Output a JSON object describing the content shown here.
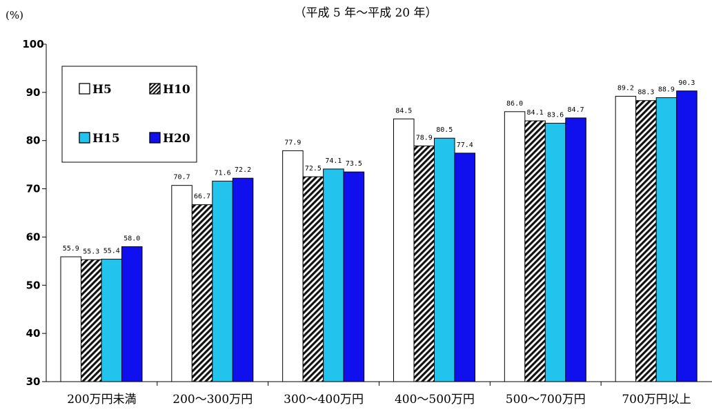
{
  "chart_data": {
    "type": "bar",
    "title": "",
    "subtitle": "（平成 5 年～平成 20 年）",
    "unit_label": "(%)",
    "xlabel": "",
    "ylabel": "",
    "ylim": [
      30,
      100
    ],
    "yticks": [
      30,
      40,
      50,
      60,
      70,
      80,
      90,
      100
    ],
    "grid": false,
    "legend_position": "top-left",
    "categories": [
      "200万円未満",
      "200～300万円",
      "300～400万円",
      "400～500万円",
      "500～700万円",
      "700万円以上"
    ],
    "series": [
      {
        "name": "H5",
        "style": "white",
        "color": "#ffffff",
        "values": [
          55.9,
          70.7,
          77.9,
          84.5,
          86.0,
          89.2
        ],
        "labels": [
          "55.9",
          "70.7",
          "77.9",
          "84.5",
          "86.0",
          "89.2"
        ]
      },
      {
        "name": "H10",
        "style": "hatched",
        "color": "#000000",
        "values": [
          55.3,
          66.7,
          72.5,
          78.9,
          84.1,
          88.3
        ],
        "labels": [
          "55.3",
          "66.7",
          "72.5",
          "78.9",
          "84.1",
          "88.3"
        ]
      },
      {
        "name": "H15",
        "style": "solid",
        "color": "#22c4ee",
        "values": [
          55.4,
          71.6,
          74.1,
          80.5,
          83.6,
          88.9
        ],
        "labels": [
          "55.4",
          "71.6",
          "74.1",
          "80.5",
          "83.6",
          "88.9"
        ]
      },
      {
        "name": "H20",
        "style": "solid",
        "color": "#1010ee",
        "values": [
          58.0,
          72.2,
          73.5,
          77.4,
          84.7,
          90.3
        ],
        "labels": [
          "58.0",
          "72.2",
          "73.5",
          "77.4",
          "84.7",
          "90.3"
        ]
      }
    ]
  }
}
